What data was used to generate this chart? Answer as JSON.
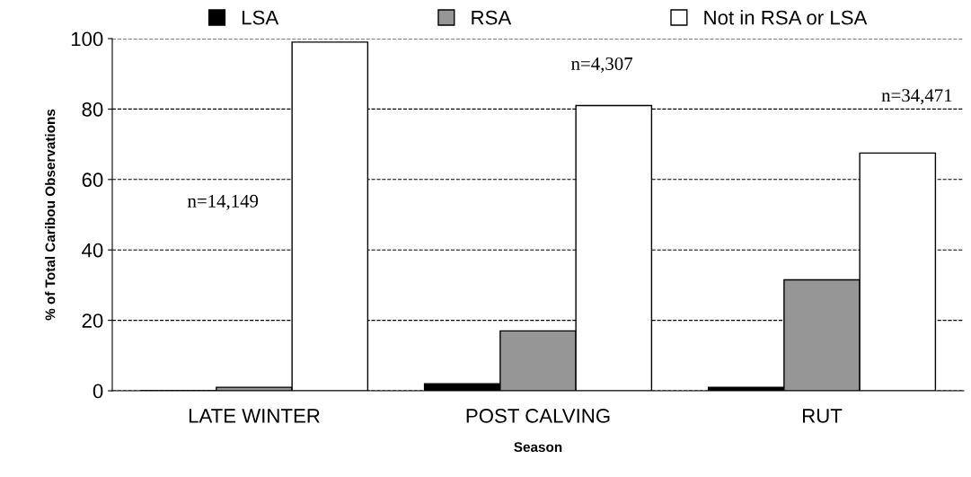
{
  "chart_data": {
    "type": "bar",
    "xlabel": "Season",
    "ylabel": "% of Total Caribou Observations",
    "categories": [
      "LATE WINTER",
      "POST CALVING",
      "RUT"
    ],
    "series": [
      {
        "name": "LSA",
        "color": "#000000",
        "values": [
          0,
          2,
          1
        ]
      },
      {
        "name": "RSA",
        "color": "#969696",
        "values": [
          1,
          17,
          31.5
        ]
      },
      {
        "name": "Not in RSA or LSA",
        "color": "#ffffff",
        "values": [
          99,
          81,
          67.5
        ]
      }
    ],
    "ylim": [
      0,
      100
    ],
    "yticks": [
      0,
      20,
      40,
      60,
      80,
      100
    ],
    "grid": "y",
    "line_style": "dashed",
    "legend": "top",
    "annotations": [
      "n=14,149",
      "n=4,307",
      "n=34,471"
    ]
  }
}
